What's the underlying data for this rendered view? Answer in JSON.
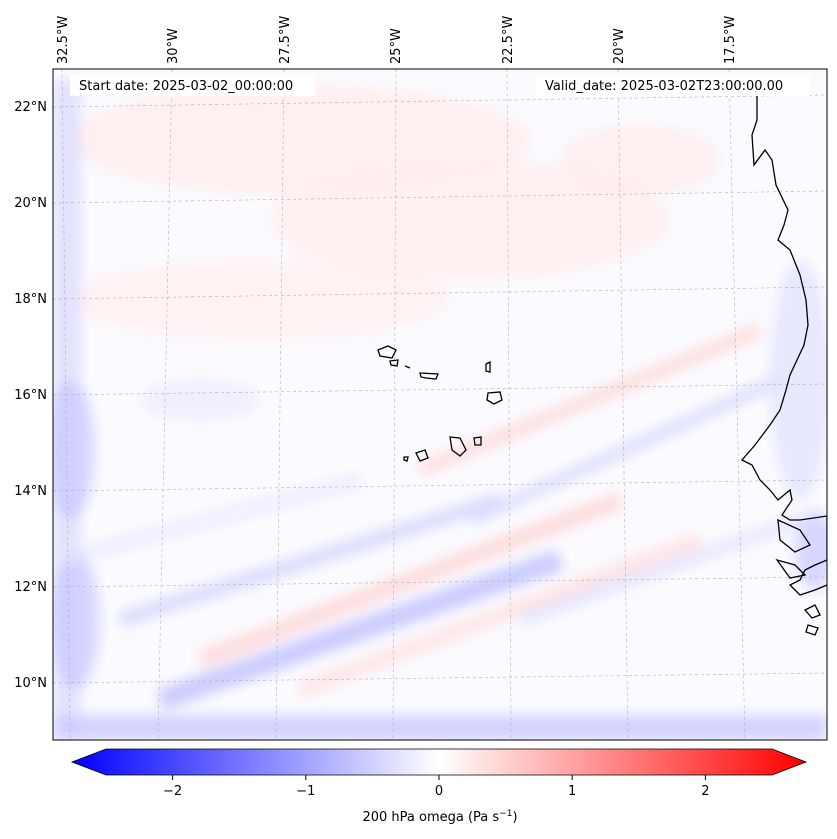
{
  "map": {
    "header": {
      "start_date": "Start date: 2025-03-02_00:00:00",
      "valid_date": "Valid_date: 2025-03-02T23:00:00.00"
    },
    "lon_labels": [
      "32.5°W",
      "30°W",
      "27.5°W",
      "25°W",
      "22.5°W",
      "20°W",
      "17.5°W"
    ],
    "lat_labels": [
      "22°N",
      "20°N",
      "18°N",
      "16°N",
      "14°N",
      "12°N",
      "10°N"
    ],
    "colorbar": {
      "ticks": [
        "−2",
        "−1",
        "0",
        "1",
        "2"
      ],
      "tick_values": [
        -2,
        -1,
        0,
        1,
        2
      ],
      "range": [
        -2.5,
        2.5
      ],
      "label_main": "200 hPa omega (Pa s",
      "label_sup": "−1",
      "label_end": ")",
      "colors": {
        "negative": "#0000ff",
        "zero": "#ffffff",
        "positive": "#ff0000"
      }
    },
    "coastline_color": "#000000",
    "gridline_color": "#b0b0b0"
  }
}
